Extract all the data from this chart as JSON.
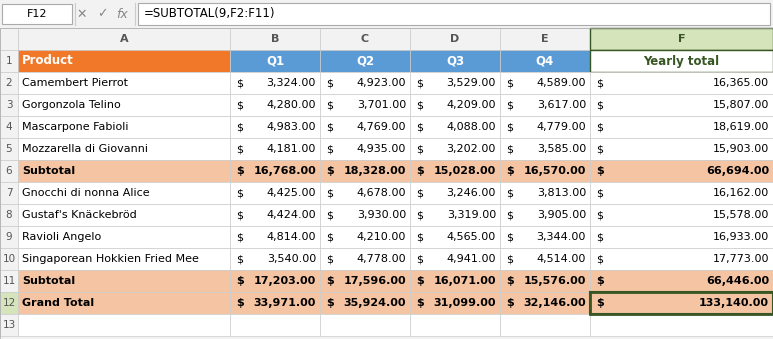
{
  "formula_bar_text": "=SUBTOTAL(9,F2:F11)",
  "cell_ref": "F12",
  "col_headers": [
    "A",
    "B",
    "C",
    "D",
    "E",
    "F"
  ],
  "row_numbers": [
    "1",
    "2",
    "3",
    "4",
    "5",
    "6",
    "7",
    "8",
    "9",
    "10",
    "11",
    "12",
    "13"
  ],
  "headers": [
    "Product",
    "Q1",
    "Q2",
    "Q3",
    "Q4",
    "Yearly total"
  ],
  "rows": [
    [
      "Camembert Pierrot",
      3324,
      4923,
      3529,
      4589,
      16365
    ],
    [
      "Gorgonzola Telino",
      4280,
      3701,
      4209,
      3617,
      15807
    ],
    [
      "Mascarpone Fabioli",
      4983,
      4769,
      4088,
      4779,
      18619
    ],
    [
      "Mozzarella di Giovanni",
      4181,
      4935,
      3202,
      3585,
      15903
    ],
    [
      "Subtotal",
      16768,
      18328,
      15028,
      16570,
      66694
    ],
    [
      "Gnocchi di nonna Alice",
      4425,
      4678,
      3246,
      3813,
      16162
    ],
    [
      "Gustaf's Knäckebröd",
      4424,
      3930,
      3319,
      3905,
      15578
    ],
    [
      "Ravioli Angelo",
      4814,
      4210,
      4565,
      3344,
      16933
    ],
    [
      "Singaporean Hokkien Fried Mee",
      3540,
      4778,
      4941,
      4514,
      17773
    ],
    [
      "Subtotal",
      17203,
      17596,
      16071,
      15576,
      66446
    ],
    [
      "Grand Total",
      33971,
      35924,
      31099,
      32146,
      133140
    ]
  ],
  "subtotal_rows": [
    4,
    9,
    10
  ],
  "grandtotal_row": 10,
  "header_bg_product": "#F07828",
  "header_bg_quarters": "#5B9BD5",
  "header_bg_yearly": "#FFFFFF",
  "header_text_product": "#FFFFFF",
  "header_text_quarters": "#FFFFFF",
  "header_text_yearly": "#375623",
  "subtotal_bg": "#F5C5A3",
  "grandtotal_bg": "#F5C5A3",
  "normal_row_bg_even": "#FFFFFF",
  "normal_row_bg_odd": "#FFFFFF",
  "row_header_bg": "#FFFFFF",
  "col_header_bg": "#FFFFFF",
  "selected_cell_border": "#375623",
  "formula_bar_bg": "#FFFFFF",
  "toolbar_bg": "#F2F2F2",
  "grid_color": "#D0D0D0",
  "yearly_col_bg": "#FFFFFF",
  "yearly_col_header_bg": "#FFFFFF",
  "yearly_col_header_text": "#375623"
}
